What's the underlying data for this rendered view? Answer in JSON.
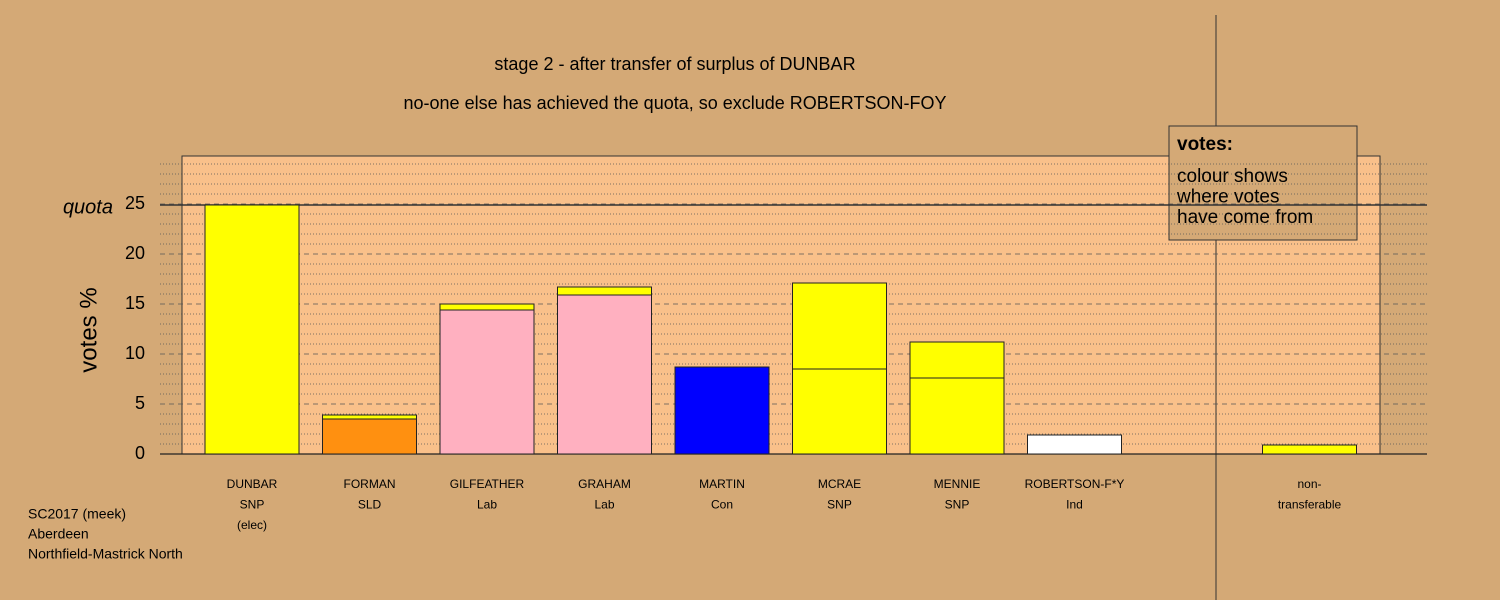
{
  "chart_data": {
    "type": "stacked-bar",
    "title": "stage 2 - after transfer of surplus of DUNBAR",
    "subtitle": "no-one else has achieved the quota, so exclude ROBERTSON-FOY",
    "ylabel": "votes %",
    "categories": [
      [
        "DUNBAR",
        "SNP",
        "(elec)"
      ],
      [
        "FORMAN",
        "SLD"
      ],
      [
        "GILFEATHER",
        "Lab"
      ],
      [
        "GRAHAM",
        "Lab"
      ],
      [
        "MARTIN",
        "Con"
      ],
      [
        "MCRAE",
        "SNP"
      ],
      [
        "MENNIE",
        "SNP"
      ],
      [
        "ROBERTSON-F*Y",
        "Ind"
      ],
      null,
      [
        "non-",
        "transferable"
      ]
    ],
    "series": [
      {
        "colors": [
          "#ffff00",
          "#ff9010",
          "#ffb0c0",
          "#ffb0c0",
          "#0000ff",
          "#ffff00",
          "#ffff00",
          "#ffffff",
          null,
          null
        ],
        "values": [
          24.9,
          3.5,
          14.4,
          15.9,
          8.7,
          8.5,
          7.6,
          1.9,
          null,
          null
        ]
      },
      {
        "colors": [
          "#ffff00",
          "#ffff00",
          "#ffff00",
          "#ffff00",
          "#ffff00",
          "#ffff00",
          "#ffff00",
          "#ffff00",
          null,
          "#ffff00"
        ],
        "values": [
          null,
          0.4,
          0.6,
          0.8,
          null,
          8.6,
          3.6,
          null,
          null,
          0.9
        ]
      }
    ],
    "ylim": [
      0,
      29.8
    ],
    "yticks": [
      0,
      5,
      10,
      15,
      20,
      25
    ],
    "minor_yticks": [
      1,
      2,
      3,
      4,
      6,
      7,
      8,
      9,
      11,
      12,
      13,
      14,
      16,
      17,
      18,
      19,
      21,
      22,
      23,
      24,
      26,
      27,
      28,
      29
    ],
    "grid": true,
    "quota": {
      "label": "quota",
      "value": 24.9
    },
    "legend": {
      "title": "votes:",
      "lines": [
        "colour shows",
        "where votes",
        "have come from"
      ]
    },
    "footer": [
      "SC2017 (meek)",
      "Aberdeen",
      "Northfield-Mastrick North"
    ]
  }
}
